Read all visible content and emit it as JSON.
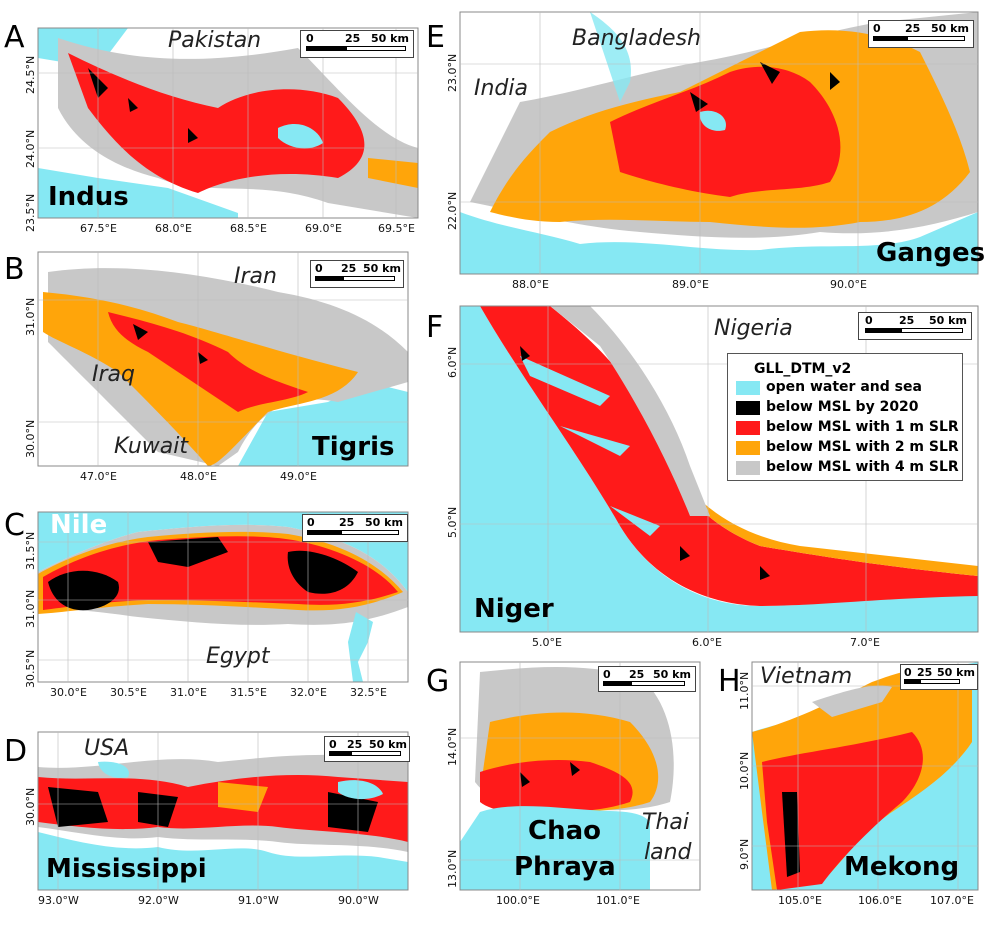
{
  "colors": {
    "water": "#86e8f3",
    "msl2020": "#000000",
    "slr1": "#ff1a1a",
    "slr2": "#ffa50a",
    "slr4": "#c8c8c8",
    "land": "#ffffff"
  },
  "legend": {
    "title": "GLL_DTM_v2",
    "items": [
      {
        "label": "open water and sea",
        "color": "#86e8f3"
      },
      {
        "label": "below MSL by 2020",
        "color": "#000000"
      },
      {
        "label": "below MSL with 1 m SLR",
        "color": "#ff1a1a"
      },
      {
        "label": "below MSL with 2 m SLR",
        "color": "#ffa50a"
      },
      {
        "label": "below MSL with 4 m SLR",
        "color": "#c8c8c8"
      }
    ]
  },
  "scalebar": {
    "l0": "0",
    "l1": "25",
    "l2": "50 km"
  },
  "panels": {
    "A": {
      "letter": "A",
      "country": "Pakistan",
      "river": "Indus",
      "xticks": [
        "67.5°E",
        "68.0°E",
        "68.5°E",
        "69.0°E",
        "69.5°E"
      ],
      "yticks": [
        "24.5°N",
        "24.0°N",
        "23.5°N"
      ]
    },
    "B": {
      "letter": "B",
      "country1": "Iran",
      "country2": "Iraq",
      "country3": "Kuwait",
      "river": "Tigris",
      "xticks": [
        "47.0°E",
        "48.0°E",
        "49.0°E"
      ],
      "yticks": [
        "31.0°N",
        "30.0°N"
      ]
    },
    "C": {
      "letter": "C",
      "river": "Nile",
      "country": "Egypt",
      "xticks": [
        "30.0°E",
        "30.5°E",
        "31.0°E",
        "31.5°E",
        "32.0°E",
        "32.5°E"
      ],
      "yticks": [
        "31.5°N",
        "31.0°N",
        "30.5°N"
      ]
    },
    "D": {
      "letter": "D",
      "country": "USA",
      "river": "Mississippi",
      "xticks": [
        "93.0°W",
        "92.0°W",
        "91.0°W",
        "90.0°W"
      ],
      "yticks": [
        "30.0°N"
      ]
    },
    "E": {
      "letter": "E",
      "country1": "Bangladesh",
      "country2": "India",
      "river": "Ganges",
      "xticks": [
        "88.0°E",
        "89.0°E",
        "90.0°E"
      ],
      "yticks": [
        "23.0°N",
        "22.0°N"
      ]
    },
    "F": {
      "letter": "F",
      "country": "Nigeria",
      "river": "Niger",
      "xticks": [
        "5.0°E",
        "6.0°E",
        "7.0°E"
      ],
      "yticks": [
        "6.0°N",
        "5.0°N"
      ]
    },
    "G": {
      "letter": "G",
      "river1": "Chao",
      "river2": "Phraya",
      "country1": "Thai",
      "country2": "land",
      "xticks": [
        "100.0°E",
        "101.0°E"
      ],
      "yticks": [
        "14.0°N",
        "13.0°N"
      ]
    },
    "H": {
      "letter": "H",
      "country": "Vietnam",
      "river": "Mekong",
      "xticks": [
        "105.0°E",
        "106.0°E",
        "107.0°E"
      ],
      "yticks": [
        "11.0°N",
        "10.0°N",
        "9.0°N"
      ]
    }
  }
}
